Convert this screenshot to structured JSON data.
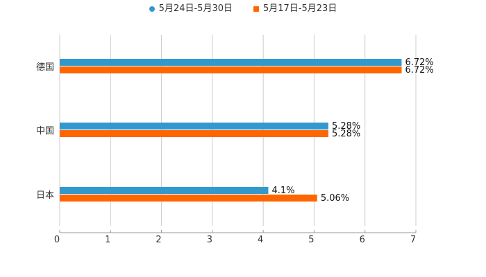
{
  "chart_data": {
    "type": "bar",
    "orientation": "horizontal",
    "categories": [
      "德国",
      "中国",
      "日本"
    ],
    "series": [
      {
        "name": "5月24日-5月30日",
        "values": [
          6.72,
          5.28,
          4.1
        ],
        "labels": [
          "6.72%",
          "5.28%",
          "4.1%"
        ],
        "color": "#3399cc",
        "marker": "circle"
      },
      {
        "name": "5月17日-5月23日",
        "values": [
          6.72,
          5.28,
          5.06
        ],
        "labels": [
          "6.72%",
          "5.28%",
          "5.06%"
        ],
        "color": "#ff6600",
        "marker": "square"
      }
    ],
    "xlim": [
      0,
      7
    ],
    "xticks": [
      "0",
      "1",
      "2",
      "3",
      "4",
      "5",
      "6",
      "7"
    ],
    "grid": true,
    "legend_position": "top-center",
    "title": "",
    "xlabel": "",
    "ylabel": ""
  }
}
